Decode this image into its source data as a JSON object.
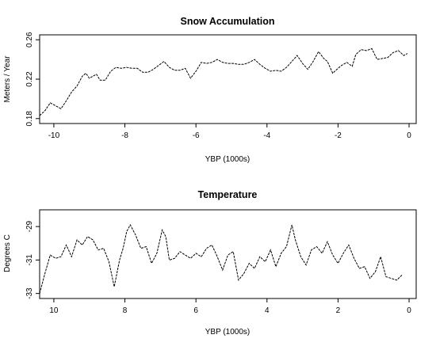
{
  "chart_data": [
    {
      "type": "line",
      "title": "Snow Accumulation",
      "xlabel": "YBP (1000s)",
      "ylabel": "Meters / Year",
      "xlim": [
        -10.4,
        0.2
      ],
      "ylim": [
        0.175,
        0.265
      ],
      "xticks": [
        -10,
        -8,
        -6,
        -4,
        -2,
        0
      ],
      "xtick_labels": [
        "-10",
        "-8",
        "-6",
        "-4",
        "-2",
        "0"
      ],
      "yticks": [
        0.18,
        0.22,
        0.26
      ],
      "ytick_labels": [
        "0.18",
        "0.22",
        "0.26"
      ],
      "grid": false,
      "series": [
        {
          "x": [
            -10.4,
            -10.25,
            -10.1,
            -9.95,
            -9.8,
            -9.65,
            -9.5,
            -9.35,
            -9.2,
            -9.1,
            -9.0,
            -8.9,
            -8.8,
            -8.7,
            -8.55,
            -8.4,
            -8.25,
            -8.1,
            -7.95,
            -7.8,
            -7.65,
            -7.5,
            -7.35,
            -7.2,
            -7.05,
            -6.9,
            -6.75,
            -6.6,
            -6.45,
            -6.3,
            -6.15,
            -6.0,
            -5.85,
            -5.7,
            -5.55,
            -5.4,
            -5.25,
            -5.1,
            -4.95,
            -4.8,
            -4.65,
            -4.5,
            -4.35,
            -4.2,
            -4.05,
            -3.9,
            -3.75,
            -3.6,
            -3.45,
            -3.3,
            -3.15,
            -3.0,
            -2.85,
            -2.7,
            -2.55,
            -2.4,
            -2.3,
            -2.15,
            -2.0,
            -1.9,
            -1.75,
            -1.6,
            -1.5,
            -1.35,
            -1.2,
            -1.05,
            -0.9,
            -0.75,
            -0.6,
            -0.45,
            -0.3,
            -0.15,
            -0.05
          ],
          "y": [
            0.183,
            0.188,
            0.196,
            0.193,
            0.19,
            0.198,
            0.207,
            0.213,
            0.223,
            0.226,
            0.221,
            0.223,
            0.225,
            0.219,
            0.219,
            0.228,
            0.232,
            0.231,
            0.232,
            0.231,
            0.231,
            0.227,
            0.227,
            0.23,
            0.234,
            0.238,
            0.232,
            0.229,
            0.229,
            0.231,
            0.221,
            0.228,
            0.237,
            0.236,
            0.237,
            0.24,
            0.237,
            0.236,
            0.236,
            0.235,
            0.235,
            0.237,
            0.24,
            0.235,
            0.231,
            0.228,
            0.229,
            0.228,
            0.232,
            0.238,
            0.244,
            0.236,
            0.23,
            0.238,
            0.248,
            0.241,
            0.238,
            0.226,
            0.231,
            0.234,
            0.237,
            0.233,
            0.245,
            0.25,
            0.249,
            0.251,
            0.24,
            0.241,
            0.242,
            0.247,
            0.249,
            0.244,
            0.246
          ]
        }
      ]
    },
    {
      "type": "line",
      "title": "Temperature",
      "xlabel": "YBP (1000s)",
      "ylabel": "Degrees C",
      "xlim": [
        10.4,
        -0.2
      ],
      "ylim": [
        -33.3,
        -28
      ],
      "xticks": [
        10,
        8,
        6,
        4,
        2,
        0
      ],
      "xtick_labels": [
        "10",
        "8",
        "6",
        "4",
        "2",
        "0"
      ],
      "yticks": [
        -29,
        -31,
        -33
      ],
      "ytick_labels": [
        "-29",
        "-31",
        "-33"
      ],
      "grid": false,
      "series": [
        {
          "x": [
            10.4,
            10.25,
            10.1,
            9.95,
            9.8,
            9.65,
            9.5,
            9.35,
            9.2,
            9.05,
            8.9,
            8.75,
            8.6,
            8.45,
            8.3,
            8.15,
            8.05,
            7.95,
            7.85,
            7.7,
            7.55,
            7.4,
            7.25,
            7.1,
            6.95,
            6.85,
            6.75,
            6.6,
            6.45,
            6.3,
            6.15,
            6.0,
            5.85,
            5.7,
            5.55,
            5.4,
            5.25,
            5.1,
            4.95,
            4.8,
            4.65,
            4.5,
            4.35,
            4.2,
            4.05,
            3.9,
            3.75,
            3.6,
            3.45,
            3.3,
            3.2,
            3.05,
            2.9,
            2.75,
            2.6,
            2.45,
            2.3,
            2.15,
            2.0,
            1.85,
            1.7,
            1.55,
            1.4,
            1.25,
            1.1,
            0.95,
            0.8,
            0.65,
            0.5,
            0.35,
            0.2
          ],
          "y": [
            -33.0,
            -31.8,
            -30.7,
            -30.9,
            -30.8,
            -30.1,
            -30.8,
            -29.8,
            -30.1,
            -29.6,
            -29.8,
            -30.4,
            -30.3,
            -31.1,
            -32.6,
            -31.0,
            -30.3,
            -29.3,
            -28.9,
            -29.5,
            -30.3,
            -30.2,
            -31.2,
            -30.6,
            -29.2,
            -29.6,
            -31.0,
            -30.9,
            -30.5,
            -30.7,
            -30.9,
            -30.6,
            -30.8,
            -30.3,
            -30.1,
            -30.8,
            -31.6,
            -30.7,
            -30.5,
            -32.2,
            -31.8,
            -31.2,
            -31.5,
            -30.8,
            -31.1,
            -30.4,
            -31.4,
            -30.6,
            -30.2,
            -28.9,
            -29.8,
            -30.8,
            -31.3,
            -30.4,
            -30.2,
            -30.6,
            -29.9,
            -30.7,
            -31.2,
            -30.6,
            -30.1,
            -30.9,
            -31.5,
            -31.4,
            -32.1,
            -31.7,
            -30.8,
            -32.0,
            -32.1,
            -32.2,
            -31.9
          ]
        }
      ]
    }
  ]
}
